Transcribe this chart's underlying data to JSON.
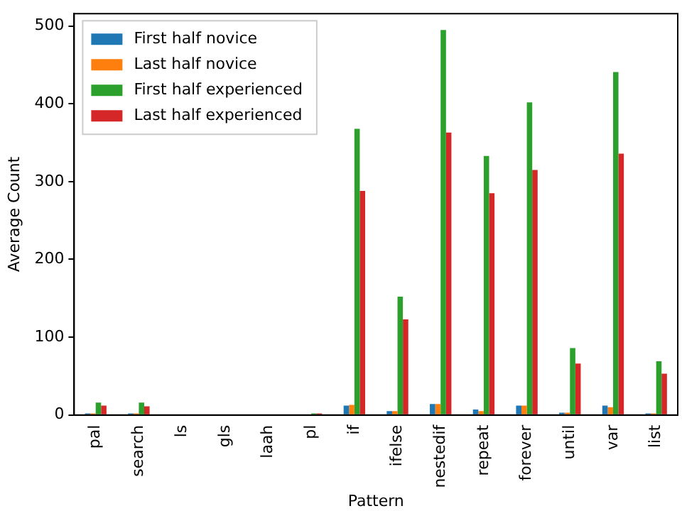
{
  "chart_data": {
    "type": "bar",
    "xlabel": "Pattern",
    "ylabel": "Average Count",
    "categories": [
      "pal",
      "search",
      "ls",
      "gls",
      "laah",
      "pl",
      "if",
      "ifelse",
      "nestedif",
      "repeat",
      "forever",
      "until",
      "var",
      "list"
    ],
    "series": [
      {
        "name": "First half novice",
        "color": "#1f77b4",
        "values": [
          2,
          2,
          0,
          0,
          0,
          0,
          12,
          5,
          14,
          7,
          12,
          3,
          12,
          2
        ]
      },
      {
        "name": "Last half novice",
        "color": "#ff7f0e",
        "values": [
          2,
          2,
          0,
          0,
          0,
          0,
          13,
          5,
          14,
          5,
          12,
          3,
          10,
          2
        ]
      },
      {
        "name": "First half experienced",
        "color": "#2ca02c",
        "values": [
          16,
          16,
          0,
          0,
          0,
          2,
          368,
          152,
          495,
          333,
          402,
          86,
          441,
          69
        ]
      },
      {
        "name": "Last half experienced",
        "color": "#d62728",
        "values": [
          12,
          11,
          0,
          0,
          0,
          2,
          288,
          123,
          363,
          285,
          315,
          66,
          336,
          53
        ]
      }
    ],
    "ylim": [
      0,
      516
    ],
    "yticks": [
      0,
      100,
      200,
      300,
      400,
      500
    ],
    "grid": false,
    "legend": "top left"
  }
}
